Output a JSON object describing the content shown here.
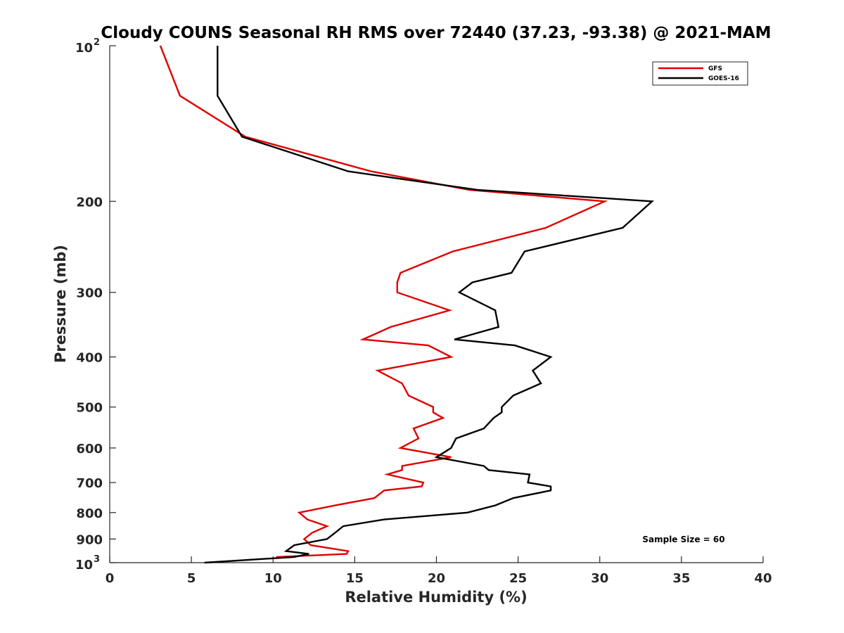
{
  "chart_data": {
    "type": "line",
    "title": "Cloudy COUNS Seasonal RH RMS over 72440 (37.23, -93.38) @ 2021-MAM",
    "xlabel": "Relative Humidity (%)",
    "ylabel": "Pressure (mb)",
    "xlim": [
      0,
      40
    ],
    "ylim": [
      100,
      1000
    ],
    "yscale": "log",
    "y_reversed": true,
    "xticks": [
      0,
      5,
      10,
      15,
      20,
      25,
      30,
      35,
      40
    ],
    "yticks": [
      {
        "value": 200,
        "label": "200"
      },
      {
        "value": 300,
        "label": "300"
      },
      {
        "value": 400,
        "label": "400"
      },
      {
        "value": 500,
        "label": "500"
      },
      {
        "value": 600,
        "label": "600"
      },
      {
        "value": 700,
        "label": "700"
      },
      {
        "value": 800,
        "label": "800"
      },
      {
        "value": 900,
        "label": "900"
      }
    ],
    "ytick_power_labels": [
      {
        "value": 100,
        "base": "10",
        "exp": "2"
      },
      {
        "value": 1000,
        "base": "10",
        "exp": "3"
      }
    ],
    "legend_position": "top-right",
    "annotation": "Sample Size = 60",
    "series": [
      {
        "name": "GFS",
        "color": "#e00000",
        "points": [
          [
            3.1,
            100
          ],
          [
            4.3,
            125
          ],
          [
            8.3,
            150
          ],
          [
            16.0,
            175
          ],
          [
            22.0,
            190
          ],
          [
            30.3,
            200
          ],
          [
            26.7,
            225
          ],
          [
            21.0,
            250
          ],
          [
            17.8,
            275
          ],
          [
            17.6,
            287
          ],
          [
            17.6,
            300
          ],
          [
            20.8,
            325
          ],
          [
            17.2,
            350
          ],
          [
            15.5,
            370
          ],
          [
            19.5,
            380
          ],
          [
            20.9,
            400
          ],
          [
            16.4,
            425
          ],
          [
            17.9,
            450
          ],
          [
            18.3,
            475
          ],
          [
            19.8,
            500
          ],
          [
            19.8,
            512
          ],
          [
            20.4,
            525
          ],
          [
            18.6,
            550
          ],
          [
            18.9,
            575
          ],
          [
            17.8,
            600
          ],
          [
            20.9,
            625
          ],
          [
            17.9,
            650
          ],
          [
            17.9,
            662
          ],
          [
            17.0,
            675
          ],
          [
            19.2,
            700
          ],
          [
            19.1,
            712
          ],
          [
            16.8,
            725
          ],
          [
            16.2,
            750
          ],
          [
            13.8,
            775
          ],
          [
            11.6,
            800
          ],
          [
            12.1,
            825
          ],
          [
            13.3,
            850
          ],
          [
            12.4,
            875
          ],
          [
            11.9,
            900
          ],
          [
            12.3,
            925
          ],
          [
            14.6,
            950
          ],
          [
            14.5,
            962
          ],
          [
            10.2,
            975
          ]
        ]
      },
      {
        "name": "GOES-16",
        "color": "#000000",
        "points": [
          [
            6.6,
            100
          ],
          [
            6.6,
            125
          ],
          [
            8.1,
            150
          ],
          [
            14.6,
            175
          ],
          [
            22.5,
            190
          ],
          [
            33.2,
            200
          ],
          [
            31.4,
            225
          ],
          [
            25.4,
            250
          ],
          [
            24.6,
            275
          ],
          [
            22.2,
            287
          ],
          [
            21.4,
            300
          ],
          [
            23.6,
            325
          ],
          [
            23.8,
            350
          ],
          [
            21.1,
            370
          ],
          [
            24.8,
            380
          ],
          [
            27.0,
            400
          ],
          [
            25.9,
            425
          ],
          [
            26.4,
            450
          ],
          [
            24.7,
            475
          ],
          [
            24.0,
            500
          ],
          [
            24.0,
            512
          ],
          [
            23.5,
            525
          ],
          [
            22.9,
            550
          ],
          [
            21.2,
            575
          ],
          [
            20.9,
            600
          ],
          [
            20.0,
            625
          ],
          [
            22.9,
            650
          ],
          [
            23.2,
            662
          ],
          [
            25.7,
            675
          ],
          [
            25.6,
            700
          ],
          [
            27.0,
            712
          ],
          [
            27.0,
            725
          ],
          [
            24.7,
            750
          ],
          [
            23.6,
            775
          ],
          [
            21.9,
            800
          ],
          [
            16.8,
            825
          ],
          [
            14.3,
            850
          ],
          [
            13.8,
            875
          ],
          [
            13.3,
            900
          ],
          [
            11.3,
            925
          ],
          [
            10.8,
            950
          ],
          [
            12.2,
            962
          ],
          [
            11.3,
            975
          ],
          [
            5.8,
            1000
          ]
        ]
      }
    ]
  }
}
